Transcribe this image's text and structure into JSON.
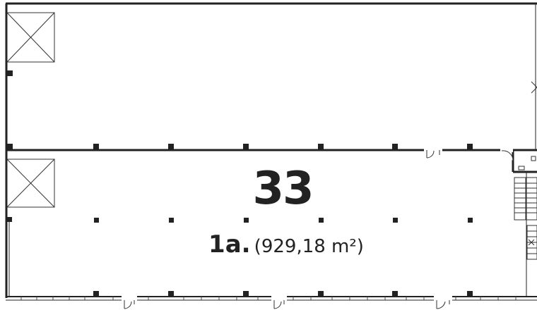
{
  "unit": {
    "number": "33",
    "floor_label": "1a.",
    "area_text": "(929,18 m²)"
  },
  "colors": {
    "wall": "#222222",
    "background": "#ffffff"
  },
  "legend_icons": [
    "ventilation-shaft-icon",
    "column-icon",
    "door-icon",
    "staircase-icon"
  ]
}
